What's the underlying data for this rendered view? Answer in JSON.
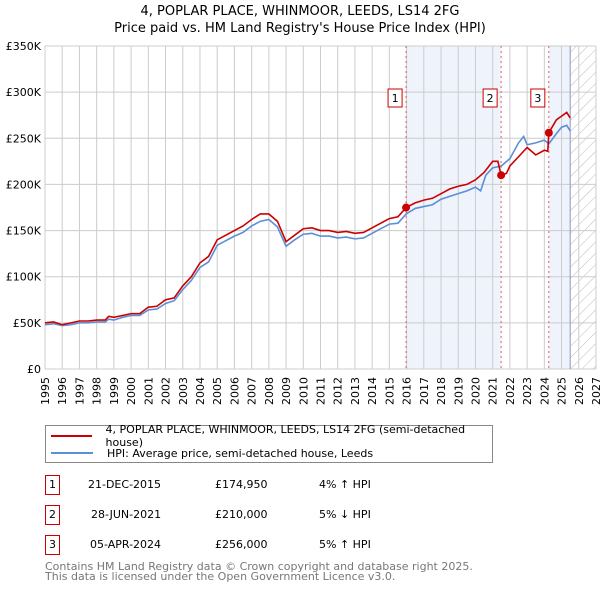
{
  "title": "4, POPLAR PLACE, WHINMOOR, LEEDS, LS14 2FG",
  "subtitle": "Price paid vs. HM Land Registry's House Price Index (HPI)",
  "chart_data": {
    "type": "line",
    "title": "4, POPLAR PLACE, WHINMOOR, LEEDS, LS14 2FG — Price paid vs. HM Land Registry's House Price Index (HPI)",
    "xlim": [
      1995,
      2027
    ],
    "ylim": [
      0,
      350000
    ],
    "xticks": [
      "1995",
      "1996",
      "1997",
      "1998",
      "1999",
      "2000",
      "2001",
      "2002",
      "2003",
      "2004",
      "2005",
      "2006",
      "2007",
      "2008",
      "2009",
      "2010",
      "2011",
      "2012",
      "2013",
      "2014",
      "2015",
      "2016",
      "2017",
      "2018",
      "2019",
      "2020",
      "2021",
      "2022",
      "2023",
      "2024",
      "2025",
      "2026",
      "2027"
    ],
    "yticks": [
      {
        "v": 0,
        "label": "£0"
      },
      {
        "v": 50000,
        "label": "£50K"
      },
      {
        "v": 100000,
        "label": "£100K"
      },
      {
        "v": 150000,
        "label": "£150K"
      },
      {
        "v": 200000,
        "label": "£200K"
      },
      {
        "v": 250000,
        "label": "£250K"
      },
      {
        "v": 300000,
        "label": "£300K"
      },
      {
        "v": 350000,
        "label": "£350K"
      }
    ],
    "grid": true,
    "series": [
      {
        "name": "4, POPLAR PLACE, WHINMOOR, LEEDS, LS14 2FG (semi-detached house)",
        "color": "#cc0000",
        "x": [
          1995,
          1995.5,
          1996,
          1996.5,
          1997,
          1997.5,
          1998,
          1998.5,
          1998.7,
          1999,
          1999.5,
          2000,
          2000.5,
          2001,
          2001.5,
          2002,
          2002.5,
          2003,
          2003.5,
          2004,
          2004.5,
          2005,
          2005.5,
          2006,
          2006.5,
          2007,
          2007.5,
          2008,
          2008.5,
          2009,
          2009.5,
          2010,
          2010.5,
          2011,
          2011.5,
          2012,
          2012.5,
          2013,
          2013.5,
          2014,
          2014.5,
          2015,
          2015.5,
          2015.97,
          2016.5,
          2017,
          2017.5,
          2018,
          2018.5,
          2019,
          2019.5,
          2020,
          2020.5,
          2021,
          2021.3,
          2021.49,
          2021.8,
          2022,
          2022.5,
          2023,
          2023.5,
          2024,
          2024.2,
          2024.26,
          2024.7,
          2025,
          2025.3,
          2025.5
        ],
        "y": [
          50000,
          51000,
          48000,
          50000,
          52000,
          52000,
          53000,
          53000,
          57000,
          56000,
          58000,
          60000,
          60000,
          67000,
          68000,
          75000,
          77000,
          90000,
          100000,
          115000,
          122000,
          140000,
          145000,
          150000,
          155000,
          162000,
          168000,
          168000,
          160000,
          138000,
          145000,
          152000,
          153000,
          150000,
          150000,
          148000,
          149000,
          147000,
          148000,
          153000,
          158000,
          163000,
          165000,
          174950,
          180000,
          183000,
          185000,
          190000,
          195000,
          198000,
          200000,
          205000,
          213000,
          225000,
          225000,
          210000,
          212000,
          220000,
          230000,
          240000,
          232000,
          237000,
          236000,
          256000,
          270000,
          274000,
          278000,
          272000
        ]
      },
      {
        "name": "HPI: Average price, semi-detached house, Leeds",
        "color": "#5b8fd6",
        "x": [
          1995,
          1995.5,
          1996,
          1996.5,
          1997,
          1997.5,
          1998,
          1998.5,
          1998.7,
          1999,
          1999.5,
          2000,
          2000.5,
          2001,
          2001.5,
          2002,
          2002.5,
          2003,
          2003.5,
          2004,
          2004.5,
          2005,
          2005.5,
          2006,
          2006.5,
          2007,
          2007.5,
          2008,
          2008.5,
          2009,
          2009.5,
          2010,
          2010.5,
          2011,
          2011.5,
          2012,
          2012.5,
          2013,
          2013.5,
          2014,
          2014.5,
          2015,
          2015.5,
          2015.97,
          2016.5,
          2017,
          2017.5,
          2018,
          2018.5,
          2019,
          2019.5,
          2020,
          2020.3,
          2020.6,
          2021,
          2021.5,
          2022,
          2022.5,
          2022.8,
          2023,
          2023.5,
          2024,
          2024.26,
          2024.7,
          2025,
          2025.3,
          2025.5
        ],
        "y": [
          48000,
          49000,
          47000,
          48000,
          50000,
          50000,
          51000,
          51000,
          54000,
          53000,
          56000,
          58000,
          58000,
          64000,
          65000,
          71000,
          74000,
          86000,
          96000,
          110000,
          116000,
          134000,
          139000,
          144000,
          148000,
          155000,
          160000,
          162000,
          154000,
          133000,
          140000,
          146000,
          147000,
          144000,
          144000,
          142000,
          143000,
          141000,
          142000,
          147000,
          152000,
          157000,
          158000,
          168000,
          174000,
          176000,
          178000,
          184000,
          187000,
          190000,
          193000,
          197000,
          193000,
          210000,
          218000,
          220000,
          228000,
          245000,
          252000,
          243000,
          245000,
          248000,
          244000,
          255000,
          262000,
          264000,
          258000
        ]
      }
    ],
    "annotations": [
      {
        "label": "1",
        "x": 2015.97,
        "y": 174950
      },
      {
        "label": "2",
        "x": 2021.49,
        "y": 210000
      },
      {
        "label": "3",
        "x": 2024.26,
        "y": 256000
      }
    ],
    "shaded": [
      [
        2015.97,
        2021.49
      ],
      [
        2024.26,
        2025.5
      ]
    ],
    "forecast_hatch_from": 2025.5,
    "legend": "bottom"
  },
  "legend": [
    "4, POPLAR PLACE, WHINMOOR, LEEDS, LS14 2FG (semi-detached house)",
    "HPI: Average price, semi-detached house, Leeds"
  ],
  "transactions": [
    {
      "n": "1",
      "date": "21-DEC-2015",
      "price": "£174,950",
      "hpi": "4% ↑ HPI"
    },
    {
      "n": "2",
      "date": "28-JUN-2021",
      "price": "£210,000",
      "hpi": "5% ↓ HPI"
    },
    {
      "n": "3",
      "date": "05-APR-2024",
      "price": "£256,000",
      "hpi": "5% ↑ HPI"
    }
  ],
  "footer": [
    "Contains HM Land Registry data © Crown copyright and database right 2025.",
    "This data is licensed under the Open Government Licence v3.0."
  ]
}
